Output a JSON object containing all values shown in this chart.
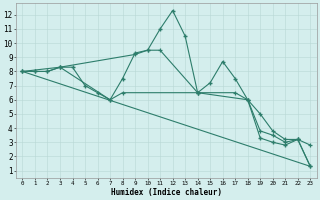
{
  "series1": {
    "x": [
      0,
      1,
      2,
      3,
      4,
      5,
      6,
      7,
      8,
      9,
      10,
      11,
      12,
      13,
      14,
      15,
      16,
      17,
      18,
      19,
      20,
      21,
      22,
      23
    ],
    "y": [
      8.0,
      8.0,
      8.0,
      8.3,
      8.3,
      7.0,
      6.5,
      6.0,
      7.5,
      9.3,
      9.5,
      11.0,
      12.3,
      10.5,
      6.5,
      7.2,
      8.7,
      7.5,
      6.0,
      3.3,
      3.0,
      2.8,
      3.2,
      1.3
    ]
  },
  "series2": {
    "x": [
      0,
      1,
      2,
      3,
      9,
      10,
      11,
      14,
      17,
      18,
      19,
      20,
      21,
      22,
      23
    ],
    "y": [
      8.0,
      8.0,
      8.0,
      8.3,
      9.2,
      9.5,
      9.5,
      6.5,
      6.5,
      6.0,
      5.0,
      3.8,
      3.2,
      3.2,
      2.8
    ]
  },
  "series3": {
    "x": [
      0,
      23
    ],
    "y": [
      8.0,
      1.3
    ]
  },
  "series4": {
    "x": [
      0,
      3,
      7,
      8,
      14,
      18,
      19,
      20,
      21,
      22,
      23
    ],
    "y": [
      8.0,
      8.3,
      6.0,
      6.5,
      6.5,
      6.0,
      3.8,
      3.5,
      3.0,
      3.2,
      1.3
    ]
  },
  "line_color": "#2d7d6b",
  "bg_color": "#d4eeed",
  "grid_color": "#b8d8d5",
  "xlabel": "Humidex (Indice chaleur)",
  "ylabel_ticks": [
    1,
    2,
    3,
    4,
    5,
    6,
    7,
    8,
    9,
    10,
    11,
    12
  ],
  "xlim": [
    -0.5,
    23.5
  ],
  "ylim": [
    0.5,
    12.8
  ]
}
